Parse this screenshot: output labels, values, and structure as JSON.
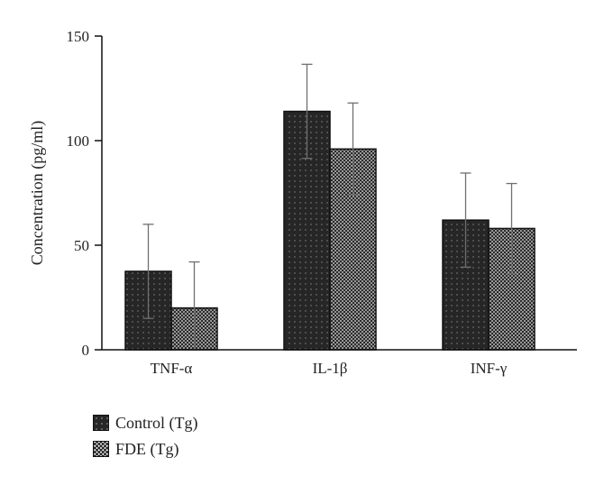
{
  "chart_data": {
    "type": "bar",
    "categories": [
      "TNF-α",
      "IL-1β",
      "INF-γ"
    ],
    "series": [
      {
        "name": "Control (Tg)",
        "values": [
          37.5,
          114,
          62
        ],
        "errors": [
          22.5,
          22.5,
          22.5
        ]
      },
      {
        "name": "FDE (Tg)",
        "values": [
          20,
          96,
          58
        ],
        "errors": [
          22,
          22,
          21.5
        ]
      }
    ],
    "ylabel": "Concentration (pg/ml)",
    "xlabel": "",
    "ylim": [
      0,
      150
    ],
    "yticks": [
      0,
      50,
      100,
      150
    ],
    "ytick_labels": [
      "0",
      "50",
      "100",
      "150"
    ],
    "grid": false,
    "legend_position": "bottom-left",
    "colors": {
      "control": "#262626",
      "fde_pattern": "#2a2a2a",
      "axis": "#111111"
    }
  }
}
